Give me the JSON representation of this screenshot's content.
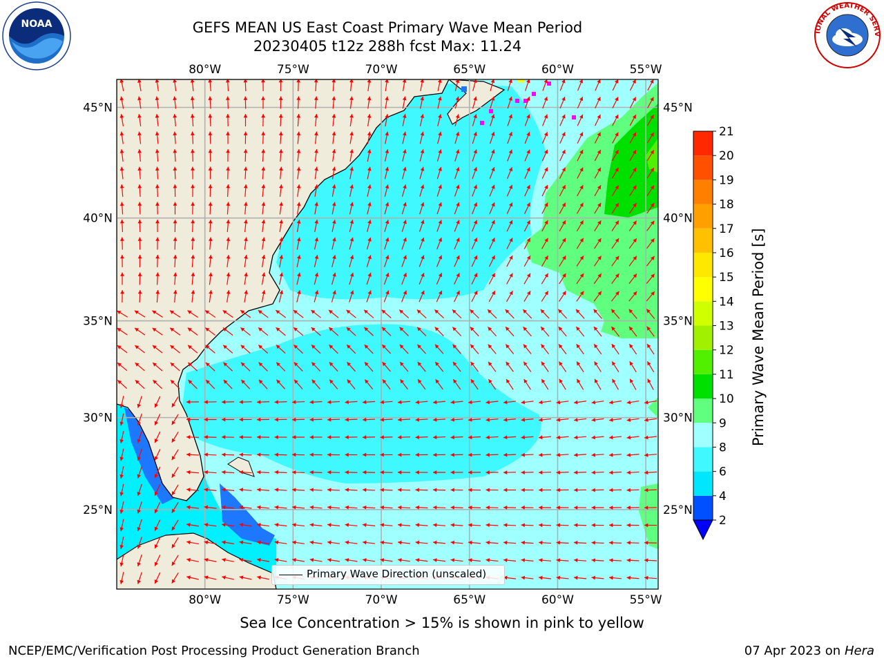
{
  "title": {
    "line1": "GEFS MEAN US East Coast Primary Wave Mean Period",
    "line2": "20230405 t12z 288h fcst   Max: 11.24"
  },
  "map": {
    "lon_labels": [
      "80°W",
      "75°W",
      "70°W",
      "65°W",
      "60°W",
      "55°W"
    ],
    "lat_labels": [
      "45°N",
      "40°N",
      "35°N",
      "30°N",
      "25°N"
    ],
    "lon_values": [
      -80,
      -75,
      -70,
      -65,
      -60,
      -55
    ],
    "lat_values": [
      45,
      40,
      35,
      30,
      25
    ],
    "extent": {
      "lon": [
        -85,
        -54.3
      ],
      "lat": [
        20.5,
        46.2
      ]
    },
    "legend": "Primary Wave Direction (unscaled)",
    "arrow_color": "#ff0000",
    "land_color": "#efecdc",
    "grid_color": "#b0b0b0"
  },
  "colorbar": {
    "title": "Primary Wave Mean Period [s]",
    "levels": [
      "2",
      "4",
      "6",
      "8",
      "9",
      "10",
      "11",
      "12",
      "13",
      "14",
      "15",
      "16",
      "17",
      "18",
      "19",
      "20",
      "21"
    ],
    "colors": [
      "#0050ff",
      "#00e6ff",
      "#40f8ff",
      "#a0ffff",
      "#60ff80",
      "#00e000",
      "#50f000",
      "#a0f000",
      "#d0ff00",
      "#ffff00",
      "#ffe800",
      "#ffc000",
      "#ffa000",
      "#ff8000",
      "#ff5000",
      "#ff2800",
      "#ff0000"
    ],
    "extend_color": "#0000ff"
  },
  "note": "Sea Ice Concentration > 15% is shown in pink to yellow",
  "footer": {
    "left": "NCEP/EMC/Verification Post Processing Product Generation Branch",
    "right_date": "07 Apr 2023 on ",
    "right_host": "Hera"
  },
  "logos": {
    "left": "NOAA",
    "right": "NATIONAL WEATHER SERVICE"
  }
}
